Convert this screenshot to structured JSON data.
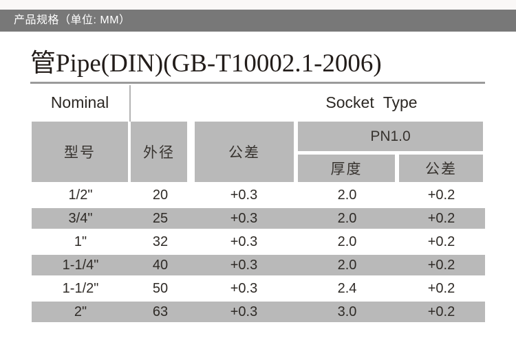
{
  "header_bar": {
    "label": "产品规格（单位: MM）",
    "bg": "#787878",
    "text_color": "#ffffff"
  },
  "title": {
    "text": "管Pipe(DIN)(GB-T10002.1-2006)",
    "underline_color": "#9a9a9a"
  },
  "table": {
    "group_header": {
      "left": "Nominal",
      "right": "Socket Type"
    },
    "sub_header": {
      "model": "型号",
      "outer_diameter": "外径",
      "tolerance": "公差",
      "pn_group": "PN1.0",
      "thickness": "厚度",
      "pn_tolerance": "公差"
    },
    "rows": [
      [
        "1/2\"",
        "20",
        "+0.3",
        "2.0",
        "+0.2"
      ],
      [
        "3/4\"",
        "25",
        "+0.3",
        "2.0",
        "+0.2"
      ],
      [
        "1\"",
        "32",
        "+0.3",
        "2.0",
        "+0.2"
      ],
      [
        "1-1/4\"",
        "40",
        "+0.3",
        "2.0",
        "+0.2"
      ],
      [
        "1-1/2\"",
        "50",
        "+0.3",
        "2.4",
        "+0.2"
      ],
      [
        "2\"",
        "63",
        "+0.3",
        "3.0",
        "+0.2"
      ]
    ],
    "colors": {
      "cell_gray": "#b9b9b9",
      "row_alt_gray": "#b9b9b9",
      "text": "#2e2a26"
    }
  }
}
